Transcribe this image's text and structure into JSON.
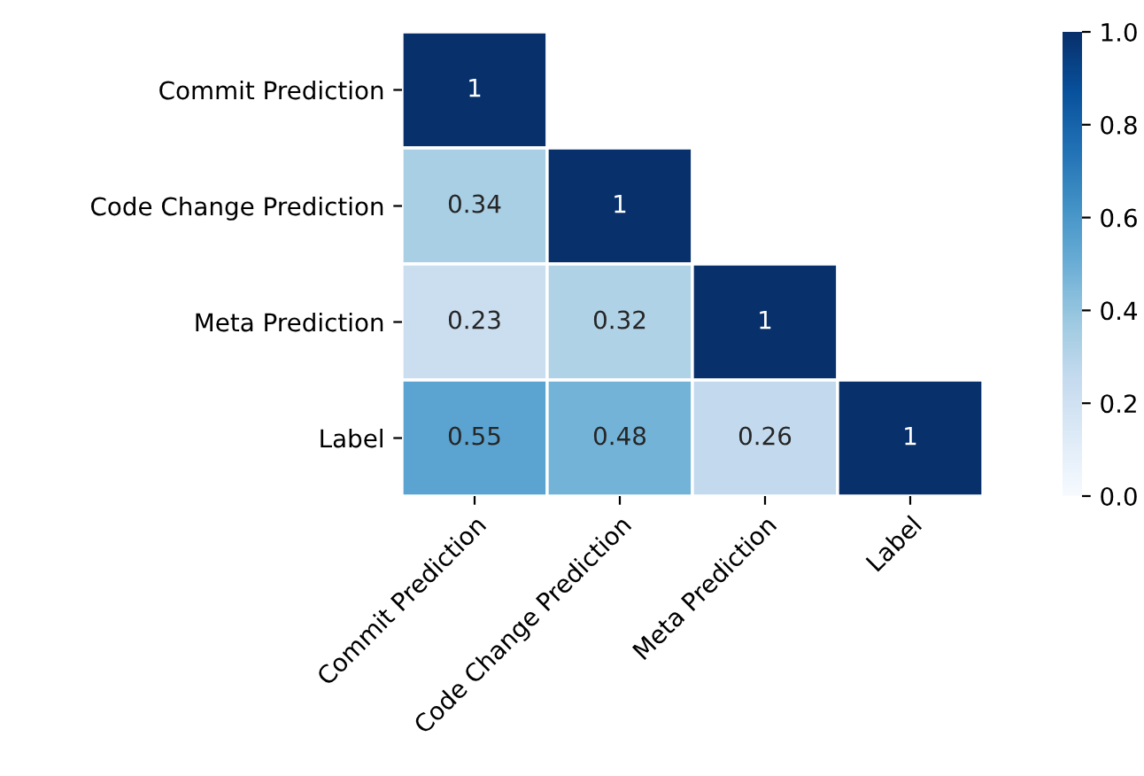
{
  "chart_data": {
    "type": "heatmap",
    "categories": [
      "Commit Prediction",
      "Code Change Prediction",
      "Meta Prediction",
      "Label"
    ],
    "y_categories": [
      "Commit Prediction",
      "Code Change Prediction",
      "Meta Prediction",
      "Label"
    ],
    "cells": [
      [
        1,
        null,
        null,
        null
      ],
      [
        0.34,
        1,
        null,
        null
      ],
      [
        0.23,
        0.32,
        1,
        null
      ],
      [
        0.55,
        0.48,
        0.26,
        1
      ]
    ],
    "data_labels": true,
    "clim": [
      0.0,
      1.0
    ],
    "cticks": [
      {
        "value": 0.0,
        "label": "0.0"
      },
      {
        "value": 0.2,
        "label": "0.2"
      },
      {
        "value": 0.4,
        "label": "0.4"
      },
      {
        "value": 0.6,
        "label": "0.6"
      },
      {
        "value": 0.8,
        "label": "0.8"
      },
      {
        "value": 1.0,
        "label": "1.0"
      }
    ]
  }
}
